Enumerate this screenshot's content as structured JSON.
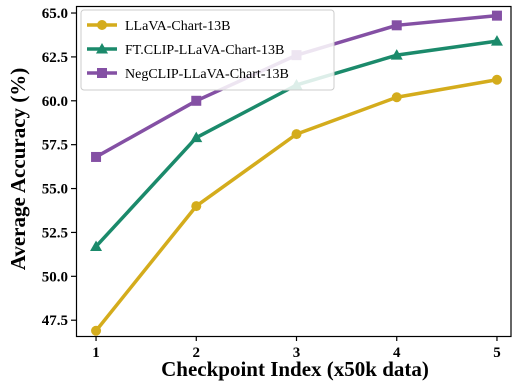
{
  "chart_data": {
    "type": "line",
    "xlabel": "Checkpoint Index (x50k data)",
    "ylabel": "Average Accuracy (%)",
    "x": [
      1,
      2,
      3,
      4,
      5
    ],
    "x_ticks": [
      "1",
      "2",
      "3",
      "4",
      "5"
    ],
    "y_ticks": [
      "47.5",
      "50.0",
      "52.5",
      "55.0",
      "57.5",
      "60.0",
      "62.5",
      "65.0"
    ],
    "xlim": [
      0.8,
      5.15
    ],
    "ylim": [
      46.6,
      65.4
    ],
    "grid": false,
    "legend_position": "top-left",
    "series": [
      {
        "name": "LLaVA-Chart-13B",
        "marker": "circle",
        "color": "#d4ac1c",
        "values": [
          46.9,
          54.0,
          58.1,
          60.2,
          61.2
        ]
      },
      {
        "name": "FT.CLIP-LLaVA-Chart-13B",
        "marker": "triangle",
        "color": "#1b8a6b",
        "values": [
          51.7,
          57.9,
          60.9,
          62.6,
          63.4
        ]
      },
      {
        "name": "NegCLIP-LLaVA-Chart-13B",
        "marker": "square",
        "color": "#8450a4",
        "values": [
          56.8,
          60.0,
          62.6,
          64.3,
          64.85
        ]
      }
    ]
  }
}
